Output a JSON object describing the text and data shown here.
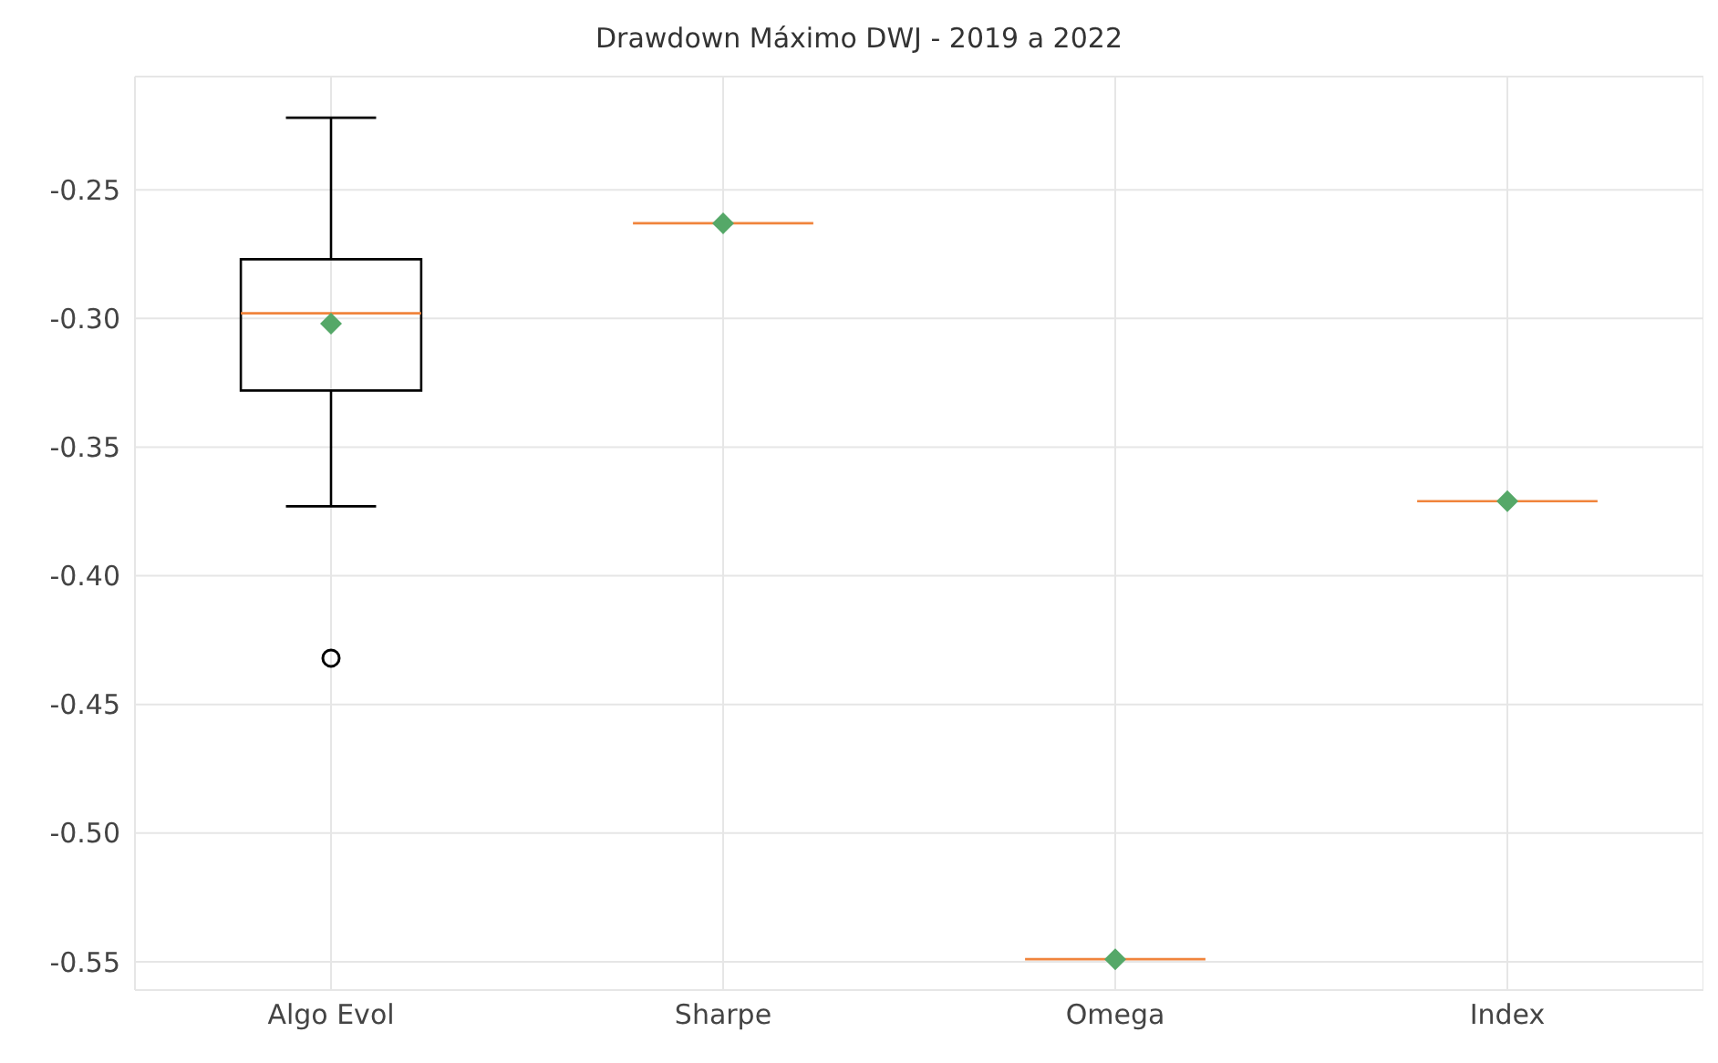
{
  "chart_data": {
    "type": "box",
    "title": "Drawdown Máximo DWJ - 2019 a 2022",
    "categories": [
      "Algo Evol",
      "Sharpe",
      "Omega",
      "Index"
    ],
    "series": [
      {
        "boxes": [
          {
            "low": -0.373,
            "q1": -0.328,
            "median": -0.298,
            "q3": -0.277,
            "high": -0.222,
            "mean": -0.302,
            "outliers": [
              -0.432
            ]
          },
          {
            "low": -0.263,
            "q1": -0.263,
            "median": -0.263,
            "q3": -0.263,
            "high": -0.263,
            "mean": -0.263
          },
          {
            "low": -0.549,
            "q1": -0.549,
            "median": -0.549,
            "q3": -0.549,
            "high": -0.549,
            "mean": -0.549
          },
          {
            "low": -0.371,
            "q1": -0.371,
            "median": -0.371,
            "q3": -0.371,
            "high": -0.371,
            "mean": -0.371
          }
        ]
      }
    ],
    "ylim": [
      -0.561,
      -0.206
    ],
    "yticks": [
      {
        "value": -0.25,
        "label": "-0.25"
      },
      {
        "value": -0.3,
        "label": "-0.30"
      },
      {
        "value": -0.35,
        "label": "-0.35"
      },
      {
        "value": -0.4,
        "label": "-0.40"
      },
      {
        "value": -0.45,
        "label": "-0.45"
      },
      {
        "value": -0.5,
        "label": "-0.50"
      },
      {
        "value": -0.55,
        "label": "-0.55"
      }
    ],
    "grid": true
  }
}
